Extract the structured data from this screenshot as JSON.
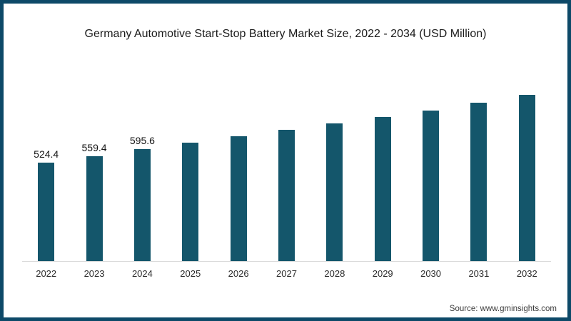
{
  "frame": {
    "border_color": "#0d4968",
    "background_color": "#ffffff"
  },
  "source": "Source: www.gminsights.com",
  "chart_data": {
    "type": "bar",
    "title": "Germany Automotive Start-Stop Battery Market Size, 2022 - 2034 (USD Million)",
    "categories": [
      "2022",
      "2023",
      "2024",
      "2025",
      "2026",
      "2027",
      "2028",
      "2029",
      "2030",
      "2031",
      "2032"
    ],
    "values": [
      524.4,
      559.4,
      595.6,
      629,
      664,
      700,
      733,
      767,
      801,
      844,
      885
    ],
    "data_labels": [
      "524.4",
      "559.4",
      "595.6",
      "",
      "",
      "",
      "",
      "",
      "",
      "",
      ""
    ],
    "xlabel": "",
    "ylabel": "",
    "y_axis_visible": false,
    "gridlines": false,
    "legend": "none",
    "bar_color": "#14566b",
    "axis_line_color": "#dadada",
    "note": "Bars for 2025-2032 carry no data labels in the chart; those values are estimated from bar heights."
  }
}
